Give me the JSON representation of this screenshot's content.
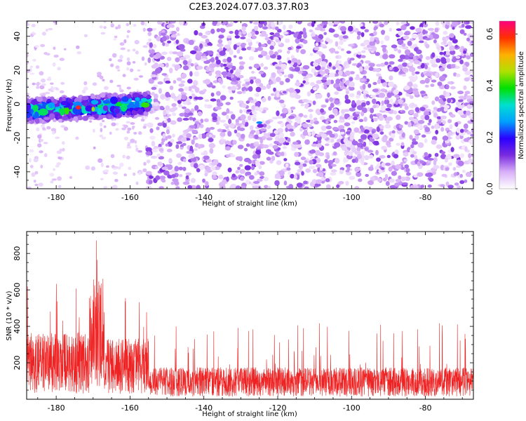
{
  "title": "C2E3.2024.077.03.37.R03",
  "chart_data": [
    {
      "type": "heatmap",
      "xlabel": "Height of straight line (km)",
      "ylabel": "Frequency (Hz)",
      "xlim": [
        -188,
        -67
      ],
      "ylim": [
        -50,
        49
      ],
      "xticks": [
        -180,
        -160,
        -140,
        -120,
        -100,
        -80
      ],
      "yticks": [
        -40,
        -20,
        0,
        20,
        40
      ],
      "colorbar": {
        "label": "Normalized spectral amplitude",
        "range": [
          0.0,
          0.65
        ],
        "ticks": [
          0.0,
          0.2,
          0.4,
          0.6
        ],
        "colors": [
          "#ffffff",
          "#d8b0f8",
          "#7a2be0",
          "#2a00ff",
          "#00a0ff",
          "#00e0d0",
          "#00e000",
          "#b0e000",
          "#ffb000",
          "#ff3000",
          "#ff0080"
        ]
      },
      "features": [
        {
          "label": "strong band",
          "x_range": [
            -188,
            -155
          ],
          "y_center": -1,
          "amplitude": 0.3
        },
        {
          "label": "peak",
          "x": -174,
          "y": -2,
          "amplitude": 0.6
        },
        {
          "label": "spot",
          "x": -125,
          "y": -11,
          "amplitude": 0.25
        }
      ]
    },
    {
      "type": "line",
      "xlabel": "Height of straight line (km)",
      "ylabel": "SNR (10 * v/v)",
      "xlim": [
        -188,
        -67
      ],
      "ylim": [
        0,
        920
      ],
      "xticks": [
        -180,
        -160,
        -140,
        -120,
        -100,
        -80
      ],
      "yticks": [
        200,
        400,
        600,
        800
      ],
      "color": "#ee2222",
      "segments": [
        {
          "x_range": [
            -188,
            -171
          ],
          "baseline": 210,
          "max": 660
        },
        {
          "x_range": [
            -171,
            -167
          ],
          "baseline": 380,
          "max": 920
        },
        {
          "x_range": [
            -167,
            -155
          ],
          "baseline": 190,
          "max": 570
        },
        {
          "x_range": [
            -155,
            -67
          ],
          "baseline": 100,
          "max": 420
        }
      ]
    }
  ]
}
